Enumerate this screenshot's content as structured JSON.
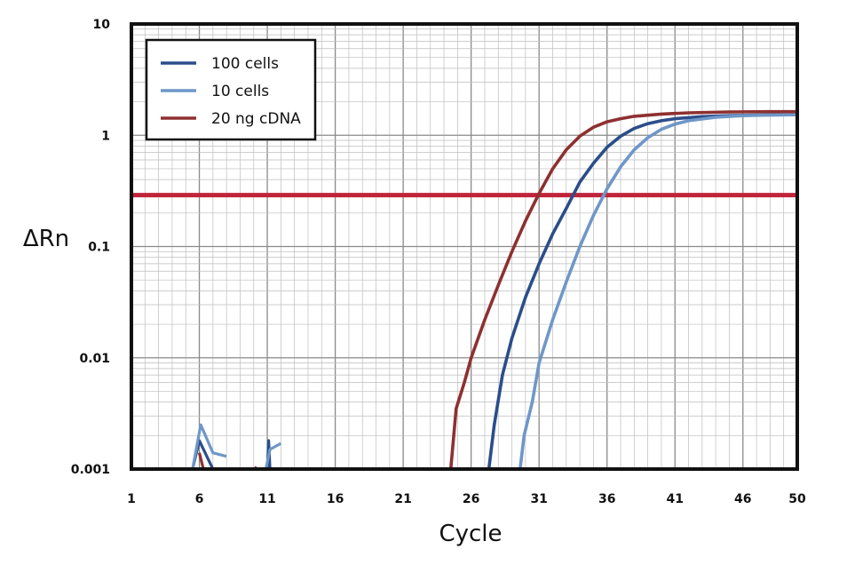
{
  "chart_data": {
    "type": "line",
    "title": "",
    "xlabel": "Cycle",
    "ylabel": "ΔRn",
    "xlim": [
      1,
      50
    ],
    "ylim": [
      0.001,
      10
    ],
    "yscale": "log",
    "grid": true,
    "legend_position": "top-left",
    "x_ticks": [
      1,
      6,
      11,
      16,
      21,
      26,
      31,
      36,
      41,
      46,
      50
    ],
    "y_ticks": [
      {
        "value": 0.001,
        "label": "0.001"
      },
      {
        "value": 0.01,
        "label": "0.01"
      },
      {
        "value": 0.1,
        "label": "0.1"
      },
      {
        "value": 1,
        "label": "1"
      },
      {
        "value": 10,
        "label": "10"
      }
    ],
    "threshold": {
      "value": 0.29,
      "color": "#c0243a"
    },
    "series": [
      {
        "name": "100 cells",
        "color": "#2b4e8a",
        "fragments": [
          [
            [
              5.5,
              0.001
            ],
            [
              6,
              0.0018
            ],
            [
              7,
              0.001
            ]
          ],
          [
            [
              11,
              0.001
            ],
            [
              11.1,
              0.0018
            ],
            [
              11.2,
              0.001
            ]
          ]
        ],
        "points": [
          [
            27.3,
            0.001
          ],
          [
            27.7,
            0.0025
          ],
          [
            28.3,
            0.007
          ],
          [
            29,
            0.015
          ],
          [
            30,
            0.035
          ],
          [
            31,
            0.07
          ],
          [
            32,
            0.13
          ],
          [
            33,
            0.22
          ],
          [
            34,
            0.38
          ],
          [
            35,
            0.56
          ],
          [
            36,
            0.78
          ],
          [
            37,
            0.98
          ],
          [
            38,
            1.15
          ],
          [
            39,
            1.27
          ],
          [
            40,
            1.35
          ],
          [
            41,
            1.41
          ],
          [
            43,
            1.47
          ],
          [
            45,
            1.5
          ],
          [
            47,
            1.52
          ],
          [
            50,
            1.53
          ]
        ]
      },
      {
        "name": "10 cells",
        "color": "#6f97c8",
        "fragments": [
          [
            [
              5.5,
              0.001
            ],
            [
              6.1,
              0.0025
            ],
            [
              7,
              0.0014
            ],
            [
              8,
              0.0013
            ]
          ],
          [
            [
              10.9,
              0.001
            ],
            [
              11.2,
              0.0015
            ],
            [
              12,
              0.0017
            ]
          ]
        ],
        "points": [
          [
            29.6,
            0.001
          ],
          [
            29.9,
            0.002
          ],
          [
            30.5,
            0.004
          ],
          [
            31,
            0.009
          ],
          [
            32,
            0.022
          ],
          [
            33,
            0.048
          ],
          [
            34,
            0.1
          ],
          [
            35,
            0.19
          ],
          [
            36,
            0.33
          ],
          [
            37,
            0.52
          ],
          [
            38,
            0.74
          ],
          [
            39,
            0.95
          ],
          [
            40,
            1.13
          ],
          [
            41,
            1.26
          ],
          [
            42,
            1.35
          ],
          [
            44,
            1.45
          ],
          [
            46,
            1.5
          ],
          [
            48,
            1.52
          ],
          [
            50,
            1.53
          ]
        ]
      },
      {
        "name": "20 ng cDNA",
        "color": "#8e3030",
        "fragments": [
          [
            [
              6,
              0.0014
            ],
            [
              6.3,
              0.001
            ]
          ],
          [
            [
              10.1,
              0.001
            ],
            [
              10.2,
              0.00105
            ]
          ]
        ],
        "points": [
          [
            24.5,
            0.001
          ],
          [
            24.9,
            0.0035
          ],
          [
            25.5,
            0.006
          ],
          [
            26,
            0.01
          ],
          [
            27,
            0.022
          ],
          [
            28,
            0.045
          ],
          [
            29,
            0.09
          ],
          [
            30,
            0.17
          ],
          [
            31,
            0.3
          ],
          [
            32,
            0.5
          ],
          [
            33,
            0.74
          ],
          [
            34,
            0.98
          ],
          [
            35,
            1.18
          ],
          [
            36,
            1.32
          ],
          [
            37,
            1.41
          ],
          [
            38,
            1.48
          ],
          [
            40,
            1.55
          ],
          [
            42,
            1.59
          ],
          [
            45,
            1.62
          ],
          [
            48,
            1.63
          ],
          [
            50,
            1.63
          ]
        ]
      }
    ]
  }
}
